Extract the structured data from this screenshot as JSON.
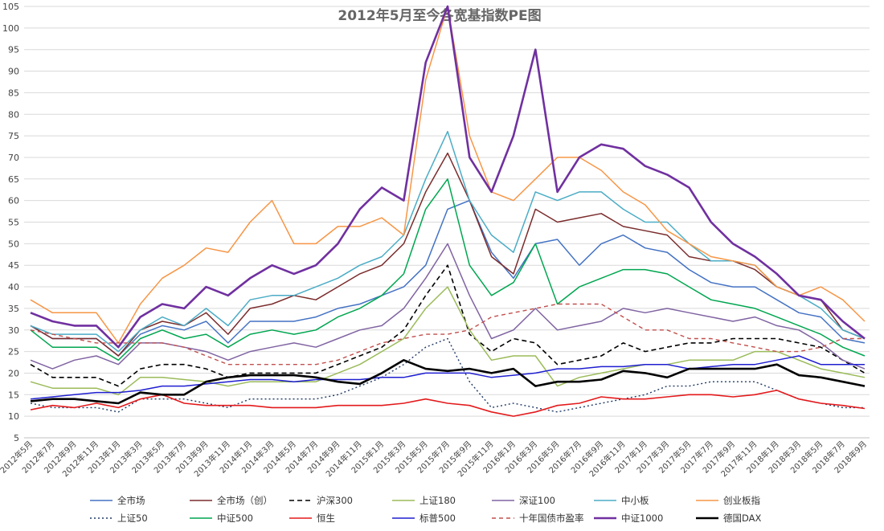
{
  "chart_data": {
    "type": "line",
    "title": "2012年5月至今各宽基指数PE图",
    "xlabel": "",
    "ylabel": "",
    "ylim": [
      5,
      105
    ],
    "yticks": [
      5,
      10,
      15,
      20,
      25,
      30,
      35,
      40,
      45,
      50,
      55,
      60,
      65,
      70,
      75,
      80,
      85,
      90,
      95,
      100,
      105
    ],
    "grid": true,
    "legend_position": "bottom",
    "categories": [
      "2012年5月",
      "2012年7月",
      "2012年9月",
      "2012年11月",
      "2013年1月",
      "2013年3月",
      "2013年5月",
      "2013年7月",
      "2013年9月",
      "2013年11月",
      "2014年1月",
      "2014年3月",
      "2014年5月",
      "2014年7月",
      "2014年9月",
      "2014年11月",
      "2015年1月",
      "2015年3月",
      "2015年5月",
      "2015年7月",
      "2015年9月",
      "2015年11月",
      "2016年1月",
      "2016年3月",
      "2016年5月",
      "2016年7月",
      "2016年9月",
      "2016年11月",
      "2017年1月",
      "2017年3月",
      "2017年5月",
      "2017年7月",
      "2017年9月",
      "2017年11月",
      "2018年1月",
      "2018年3月",
      "2018年5月",
      "2018年7月",
      "2018年9月"
    ],
    "series": [
      {
        "name": "全市场",
        "color": "#4472C4",
        "dash": "solid",
        "width": 1.5,
        "values": [
          31,
          28,
          28,
          28,
          24,
          29,
          31,
          30,
          32,
          27,
          32,
          32,
          32,
          33,
          35,
          36,
          38,
          40,
          45,
          58,
          60,
          48,
          42,
          50,
          51,
          45,
          50,
          52,
          49,
          48,
          44,
          41,
          40,
          40,
          37,
          34,
          33,
          28,
          27
        ]
      },
      {
        "name": "全市场（创）",
        "color": "#7B2C2C",
        "dash": "solid",
        "width": 1.5,
        "values": [
          31,
          28,
          28,
          28,
          24,
          30,
          32,
          31,
          34,
          29,
          35,
          36,
          38,
          37,
          40,
          43,
          45,
          50,
          62,
          71,
          60,
          47,
          43,
          58,
          55,
          56,
          57,
          54,
          53,
          52,
          47,
          46,
          46,
          44,
          40,
          38,
          37,
          30,
          28
        ]
      },
      {
        "name": "沪深300",
        "color": "#000000",
        "dash": "6,4",
        "width": 1.6,
        "values": [
          22,
          19,
          19,
          19,
          17,
          21,
          22,
          22,
          21,
          19,
          20,
          20,
          20,
          20,
          22,
          24,
          26,
          30,
          38,
          45,
          29,
          25,
          28,
          27,
          22,
          23,
          24,
          27,
          25,
          26,
          27,
          27,
          28,
          28,
          28,
          27,
          26,
          23,
          20
        ]
      },
      {
        "name": "上证180",
        "color": "#9BBB59",
        "dash": "solid",
        "width": 1.5,
        "values": [
          18,
          16.5,
          16.5,
          16.5,
          15,
          19,
          19,
          18.5,
          18,
          17,
          18,
          18,
          18,
          18,
          20,
          22,
          25,
          28,
          35,
          40,
          30,
          23,
          24,
          24,
          17,
          19,
          20,
          21,
          22,
          22,
          23,
          23,
          23,
          25,
          25,
          23,
          21,
          20,
          19
        ]
      },
      {
        "name": "深证100",
        "color": "#8064A2",
        "dash": "solid",
        "width": 1.5,
        "values": [
          23,
          21,
          23,
          24,
          22,
          27,
          27,
          26,
          25,
          23,
          25,
          26,
          27,
          26,
          28,
          30,
          31,
          35,
          42,
          50,
          38,
          28,
          30,
          35,
          30,
          31,
          32,
          35,
          34,
          35,
          34,
          33,
          32,
          33,
          31,
          30,
          27,
          23,
          21
        ]
      },
      {
        "name": "中小板",
        "color": "#4BACC6",
        "dash": "solid",
        "width": 1.5,
        "values": [
          31,
          29,
          29,
          29,
          25,
          30,
          33,
          31,
          35,
          31,
          37,
          38,
          38,
          40,
          42,
          45,
          47,
          52,
          65,
          76,
          60,
          52,
          48,
          62,
          60,
          62,
          62,
          58,
          55,
          55,
          50,
          46,
          46,
          45,
          40,
          38,
          35,
          30,
          28
        ]
      },
      {
        "name": "创业板指",
        "color": "#F79646",
        "dash": "solid",
        "width": 1.5,
        "values": [
          37,
          34,
          34,
          34,
          27,
          36,
          42,
          45,
          49,
          48,
          55,
          60,
          50,
          50,
          54,
          54,
          56,
          52,
          88,
          108,
          75,
          62,
          60,
          65,
          70,
          70,
          67,
          62,
          59,
          53,
          50,
          47,
          46,
          45,
          40,
          38,
          40,
          37,
          32
        ]
      },
      {
        "name": "上证50",
        "color": "#1F3864",
        "dash": "2,3",
        "width": 1.4,
        "values": [
          13,
          12,
          12,
          12,
          11,
          14,
          14,
          14,
          13,
          12,
          14,
          14,
          14,
          14,
          15,
          17,
          19,
          22,
          26,
          28,
          18,
          12,
          13,
          12,
          11,
          12,
          13,
          14,
          15,
          17,
          17,
          18,
          18,
          18,
          16,
          14,
          13,
          12,
          12
        ]
      },
      {
        "name": "中证500",
        "color": "#00A650",
        "dash": "solid",
        "width": 1.5,
        "values": [
          30,
          26,
          26,
          26,
          23,
          28,
          30,
          28,
          29,
          26,
          29,
          30,
          29,
          30,
          33,
          35,
          38,
          43,
          58,
          65,
          45,
          38,
          41,
          50,
          36,
          40,
          42,
          44,
          44,
          43,
          40,
          37,
          36,
          35,
          33,
          31,
          29,
          26,
          24
        ]
      },
      {
        "name": "恒生",
        "color": "#E31A1C",
        "dash": "solid",
        "width": 1.6,
        "values": [
          11.5,
          12.5,
          12,
          13,
          12,
          14,
          15,
          13,
          12.5,
          12.5,
          12.5,
          12,
          12,
          12,
          12.5,
          12.5,
          12.5,
          13,
          14,
          13,
          12.5,
          11,
          10,
          11,
          12.5,
          13,
          14.5,
          14,
          14,
          14.5,
          15,
          15,
          14.5,
          15,
          16,
          14,
          13,
          12.5,
          11.8
        ]
      },
      {
        "name": "标普500",
        "color": "#1F1FD1",
        "dash": "solid",
        "width": 1.5,
        "values": [
          14,
          14.5,
          15,
          15.5,
          15.5,
          16,
          17,
          17,
          17.5,
          18,
          18.5,
          18.5,
          18,
          18.5,
          18.5,
          18.5,
          19,
          19,
          20,
          20,
          20,
          19,
          19.5,
          20,
          21,
          21,
          21.5,
          21.5,
          22,
          22,
          21,
          21.5,
          22,
          22,
          23,
          24,
          22,
          22,
          22
        ]
      },
      {
        "name": "十年国债市盈率",
        "color": "#C0504D",
        "dash": "5,4",
        "width": 1.4,
        "values": [
          30,
          29,
          28,
          27,
          27,
          27,
          27,
          26,
          24,
          22,
          22,
          22,
          22,
          22,
          23,
          25,
          27,
          28,
          29,
          29,
          30,
          33,
          34,
          35,
          36,
          36,
          36,
          33,
          30,
          30,
          28,
          28,
          27,
          26,
          25,
          25,
          26,
          28,
          28
        ]
      },
      {
        "name": "中证1000",
        "color": "#7030A0",
        "dash": "solid",
        "width": 2.6,
        "values": [
          34,
          32,
          31,
          31,
          26,
          33,
          36,
          35,
          40,
          38,
          42,
          45,
          43,
          45,
          50,
          58,
          63,
          60,
          92,
          108,
          70,
          62,
          75,
          95,
          62,
          70,
          73,
          72,
          68,
          66,
          63,
          55,
          50,
          47,
          43,
          38,
          37,
          32,
          28
        ]
      },
      {
        "name": "德国DAX",
        "color": "#000000",
        "dash": "solid",
        "width": 2.6,
        "values": [
          13.5,
          14,
          14,
          13.5,
          13,
          15.5,
          15,
          15,
          18,
          19,
          19.5,
          19.5,
          19.5,
          19,
          18,
          17.5,
          20,
          23,
          21,
          20.5,
          21,
          20,
          21,
          17,
          18,
          18,
          18.5,
          20.5,
          20,
          19,
          21,
          21,
          21,
          21,
          22,
          19.5,
          19,
          18,
          17
        ]
      }
    ]
  }
}
